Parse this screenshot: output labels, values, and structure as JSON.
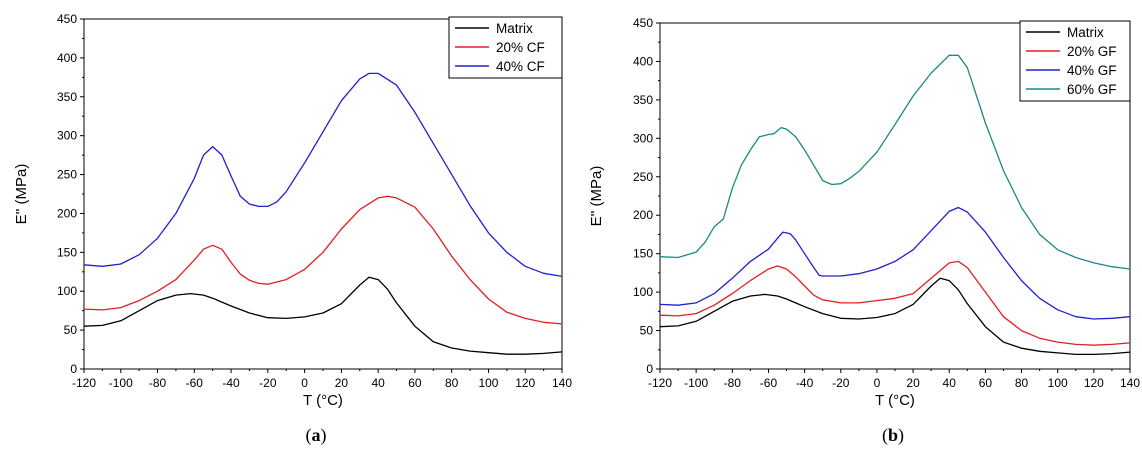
{
  "panel_labels": [
    {
      "open": "(",
      "letter": "a",
      "close": ")"
    },
    {
      "open": "(",
      "letter": "b",
      "close": ")"
    }
  ],
  "chart_data": [
    {
      "type": "line",
      "xlabel": "T (°C)",
      "ylabel": "E'' (MPa)",
      "xlim": [
        -120,
        140
      ],
      "ylim": [
        0,
        450
      ],
      "xticks": [
        -120,
        -100,
        -80,
        -60,
        -40,
        -20,
        0,
        20,
        40,
        60,
        80,
        100,
        120,
        140
      ],
      "yticks": [
        0,
        50,
        100,
        150,
        200,
        250,
        300,
        350,
        400,
        450
      ],
      "grid": false,
      "legend_position": "top-right",
      "series": [
        {
          "name": "Matrix",
          "color": "#000000",
          "x": [
            -120,
            -110,
            -100,
            -90,
            -80,
            -70,
            -62,
            -55,
            -50,
            -45,
            -40,
            -30,
            -20,
            -10,
            0,
            10,
            20,
            30,
            35,
            40,
            45,
            50,
            60,
            70,
            80,
            90,
            100,
            110,
            120,
            130,
            140
          ],
          "y": [
            55,
            56,
            62,
            75,
            88,
            95,
            97,
            95,
            91,
            86,
            81,
            72,
            66,
            65,
            67,
            72,
            84,
            108,
            118,
            115,
            103,
            85,
            55,
            35,
            27,
            23,
            21,
            19,
            19,
            20,
            22
          ]
        },
        {
          "name": "20% CF",
          "color": "#e02020",
          "x": [
            -120,
            -110,
            -100,
            -90,
            -80,
            -70,
            -60,
            -55,
            -50,
            -45,
            -40,
            -35,
            -30,
            -25,
            -20,
            -10,
            0,
            10,
            20,
            30,
            40,
            45,
            50,
            60,
            70,
            80,
            90,
            100,
            110,
            120,
            130,
            140
          ],
          "y": [
            77,
            76,
            79,
            88,
            100,
            115,
            140,
            154,
            159,
            154,
            137,
            122,
            114,
            110,
            109,
            115,
            128,
            150,
            180,
            205,
            220,
            222,
            220,
            208,
            180,
            145,
            115,
            90,
            73,
            65,
            60,
            58
          ]
        },
        {
          "name": "40% CF",
          "color": "#2020d0",
          "x": [
            -120,
            -110,
            -100,
            -90,
            -80,
            -70,
            -60,
            -55,
            -50,
            -45,
            -40,
            -35,
            -30,
            -25,
            -20,
            -15,
            -10,
            0,
            10,
            20,
            30,
            35,
            40,
            50,
            60,
            70,
            80,
            90,
            100,
            110,
            120,
            130,
            140
          ],
          "y": [
            134,
            132,
            135,
            147,
            168,
            200,
            245,
            275,
            286,
            275,
            248,
            222,
            212,
            209,
            209,
            215,
            228,
            265,
            305,
            345,
            373,
            380,
            380,
            365,
            330,
            290,
            250,
            210,
            175,
            150,
            132,
            123,
            119
          ]
        }
      ]
    },
    {
      "type": "line",
      "xlabel": "T (°C)",
      "ylabel": "E'' (MPa)",
      "xlim": [
        -120,
        140
      ],
      "ylim": [
        0,
        450
      ],
      "xticks": [
        -120,
        -100,
        -80,
        -60,
        -40,
        -20,
        0,
        20,
        40,
        60,
        80,
        100,
        120,
        140
      ],
      "yticks": [
        0,
        50,
        100,
        150,
        200,
        250,
        300,
        350,
        400,
        450
      ],
      "grid": false,
      "legend_position": "top-right",
      "series": [
        {
          "name": "Matrix",
          "color": "#000000",
          "x": [
            -120,
            -110,
            -100,
            -90,
            -80,
            -70,
            -62,
            -55,
            -50,
            -45,
            -40,
            -30,
            -20,
            -10,
            0,
            10,
            20,
            30,
            35,
            40,
            45,
            50,
            60,
            70,
            80,
            90,
            100,
            110,
            120,
            130,
            140
          ],
          "y": [
            55,
            56,
            62,
            75,
            88,
            95,
            97,
            95,
            91,
            86,
            81,
            72,
            66,
            65,
            67,
            72,
            84,
            108,
            118,
            115,
            103,
            85,
            55,
            35,
            27,
            23,
            21,
            19,
            19,
            20,
            22
          ]
        },
        {
          "name": "20% GF",
          "color": "#e02020",
          "x": [
            -120,
            -110,
            -100,
            -90,
            -80,
            -70,
            -60,
            -55,
            -50,
            -45,
            -40,
            -35,
            -30,
            -20,
            -10,
            0,
            10,
            20,
            30,
            40,
            45,
            50,
            60,
            70,
            80,
            90,
            100,
            110,
            120,
            130,
            140
          ],
          "y": [
            70,
            69,
            72,
            83,
            98,
            115,
            130,
            134,
            130,
            120,
            108,
            96,
            90,
            86,
            86,
            89,
            92,
            98,
            118,
            138,
            140,
            132,
            100,
            68,
            50,
            40,
            35,
            32,
            31,
            32,
            34
          ]
        },
        {
          "name": "40% GF",
          "color": "#2020d0",
          "x": [
            -120,
            -110,
            -100,
            -90,
            -80,
            -70,
            -60,
            -55,
            -52,
            -48,
            -45,
            -40,
            -35,
            -32,
            -30,
            -20,
            -10,
            0,
            10,
            20,
            30,
            40,
            45,
            50,
            60,
            70,
            80,
            90,
            100,
            110,
            120,
            130,
            140
          ],
          "y": [
            84,
            83,
            86,
            98,
            118,
            140,
            156,
            170,
            178,
            176,
            168,
            150,
            132,
            122,
            121,
            121,
            124,
            130,
            140,
            155,
            180,
            205,
            210,
            204,
            178,
            145,
            115,
            92,
            77,
            68,
            65,
            66,
            68
          ]
        },
        {
          "name": "60% GF",
          "color": "#1a8a80",
          "x": [
            -120,
            -110,
            -100,
            -95,
            -90,
            -85,
            -80,
            -75,
            -70,
            -65,
            -60,
            -57,
            -53,
            -50,
            -45,
            -40,
            -35,
            -30,
            -25,
            -20,
            -15,
            -10,
            0,
            10,
            20,
            30,
            40,
            45,
            50,
            60,
            70,
            80,
            90,
            100,
            110,
            120,
            130,
            140
          ],
          "y": [
            146,
            145,
            152,
            165,
            185,
            195,
            235,
            265,
            285,
            302,
            305,
            306,
            314,
            312,
            302,
            285,
            265,
            245,
            240,
            241,
            248,
            257,
            282,
            318,
            355,
            385,
            408,
            408,
            392,
            320,
            258,
            210,
            175,
            155,
            145,
            138,
            133,
            130
          ]
        }
      ]
    }
  ]
}
